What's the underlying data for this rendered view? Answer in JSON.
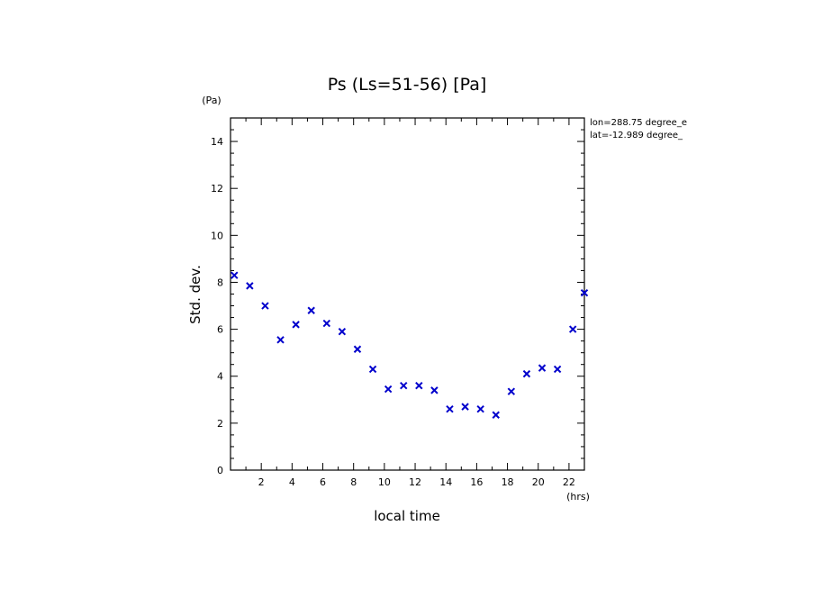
{
  "chart_data": {
    "type": "scatter",
    "title": "Ps (Ls=51-56) [Pa]",
    "xlabel": "local time",
    "ylabel": "Std. dev.",
    "x_unit": "(hrs)",
    "y_unit": "(Pa)",
    "xlim": [
      0,
      23
    ],
    "ylim": [
      0,
      15
    ],
    "x_ticks": [
      2,
      4,
      6,
      8,
      10,
      12,
      14,
      16,
      18,
      20,
      22
    ],
    "y_ticks": [
      0,
      2,
      4,
      6,
      8,
      10,
      12,
      14
    ],
    "annotations": [
      "lon=288.75 degree_e",
      "lat=-12.989 degree_"
    ],
    "grid": false,
    "marker": "x",
    "marker_color": "#0000cc",
    "series": [
      {
        "x": [
          0.25,
          1.25,
          2.25,
          3.25,
          4.25,
          5.25,
          6.25,
          7.25,
          8.25,
          9.25,
          10.25,
          11.25,
          12.25,
          13.25,
          14.25,
          15.25,
          16.25,
          17.25,
          18.25,
          19.25,
          20.25,
          21.25,
          22.25,
          23.0
        ],
        "y": [
          8.3,
          7.85,
          7.0,
          5.55,
          6.2,
          6.8,
          6.25,
          5.9,
          5.15,
          4.3,
          3.45,
          3.6,
          3.6,
          3.4,
          2.6,
          2.7,
          2.6,
          2.35,
          3.35,
          4.1,
          4.35,
          4.3,
          6.0,
          7.55
        ]
      }
    ]
  }
}
